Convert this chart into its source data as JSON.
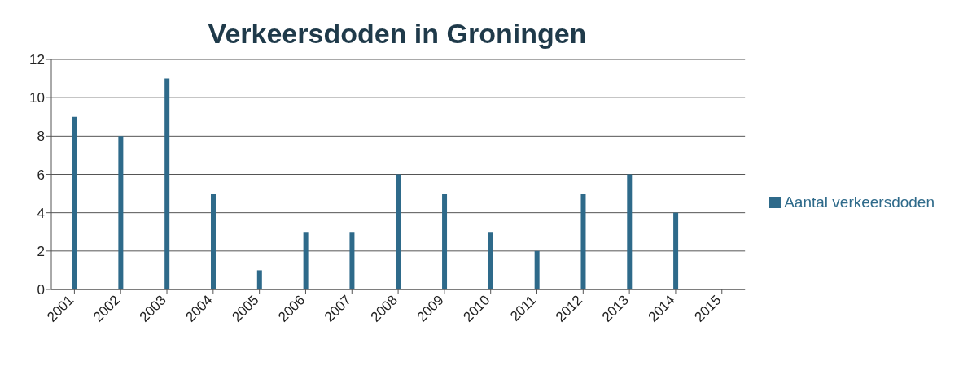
{
  "chart_data": {
    "type": "bar",
    "title": "Verkeersdoden in Groningen",
    "categories": [
      "2001",
      "2002",
      "2003",
      "2004",
      "2005",
      "2006",
      "2007",
      "2008",
      "2009",
      "2010",
      "2011",
      "2012",
      "2013",
      "2014",
      "2015"
    ],
    "series": [
      {
        "name": "Aantal verkeersdoden",
        "color": "#2e6a8a",
        "values": [
          9,
          8,
          11,
          5,
          1,
          3,
          3,
          6,
          5,
          3,
          2,
          5,
          6,
          4,
          null
        ]
      }
    ],
    "ylim": [
      0,
      12
    ],
    "yticks": [
      0,
      2,
      4,
      6,
      8,
      10,
      12
    ],
    "grid": "y",
    "legend": "right"
  }
}
